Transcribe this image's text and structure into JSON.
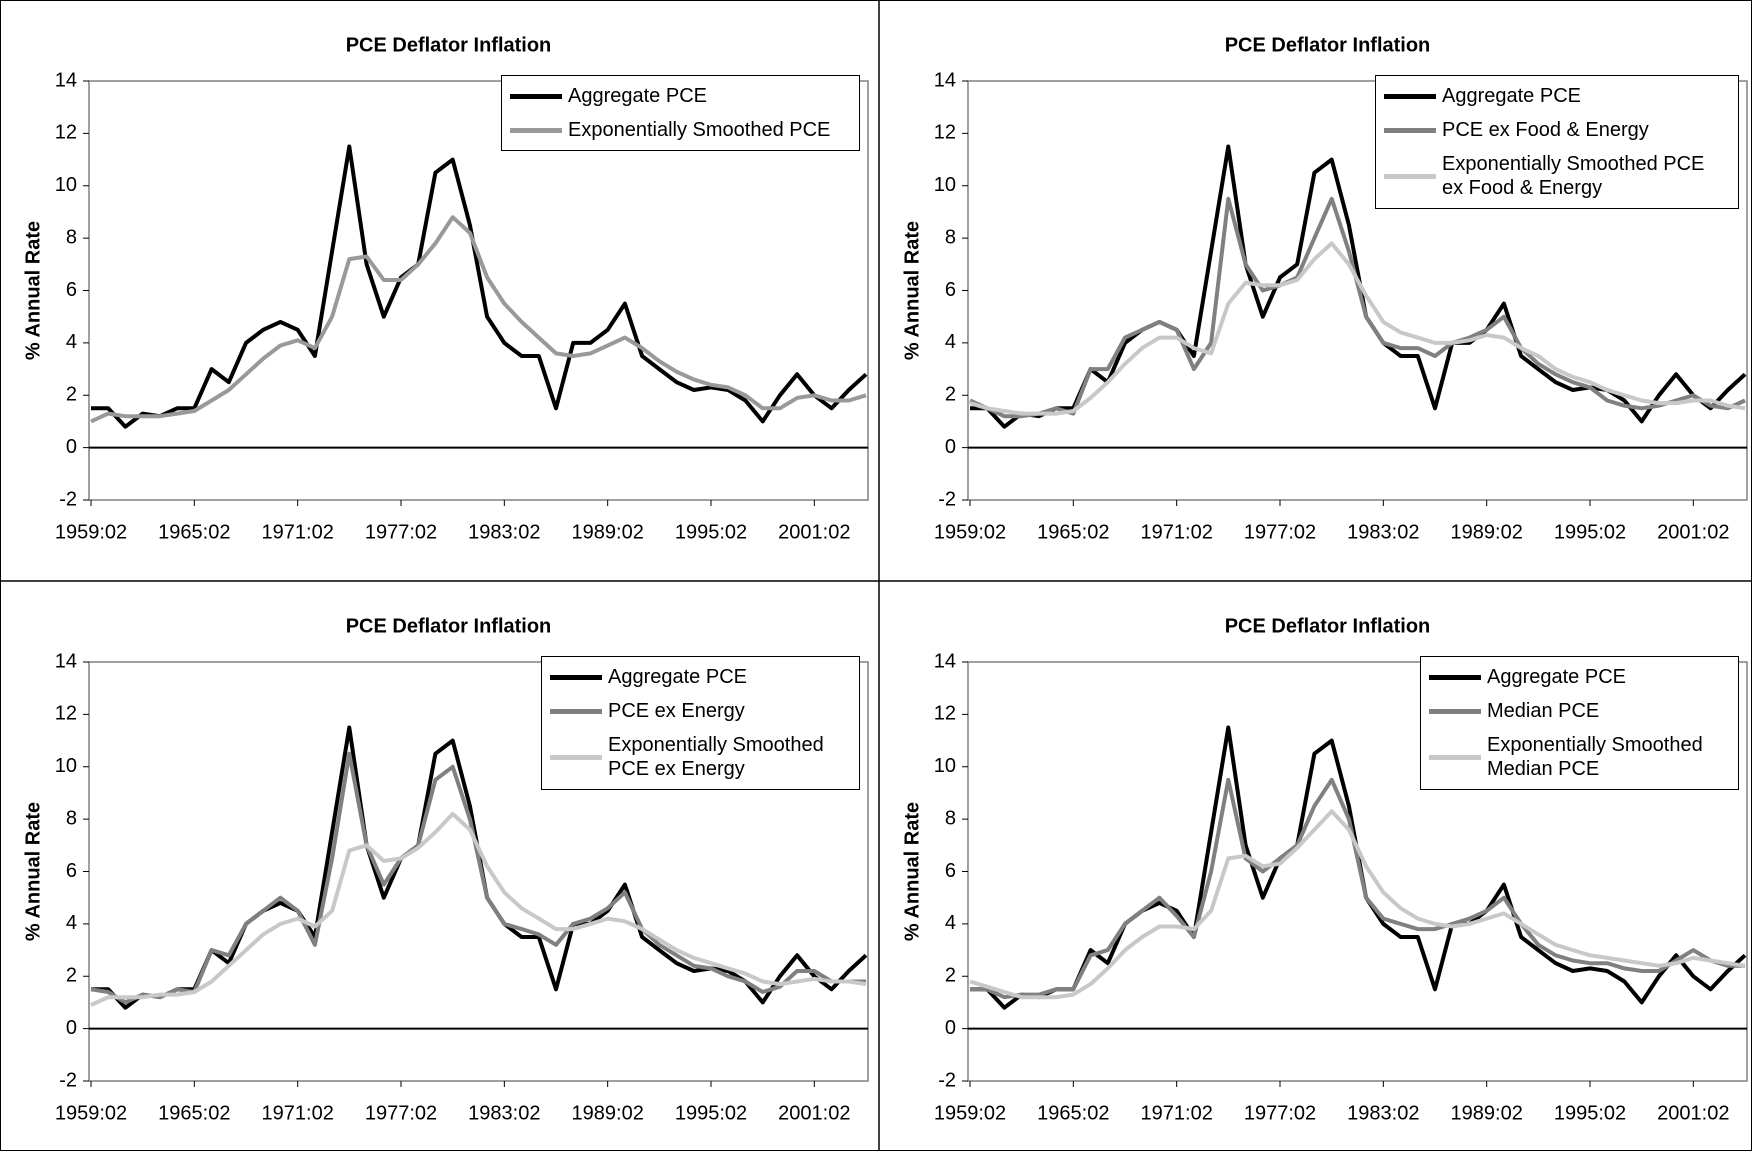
{
  "chart_data": [
    {
      "type": "line",
      "title": "PCE Deflator Inflation",
      "y_label": "% Annual Rate",
      "categories": [
        "1959:02",
        null,
        null,
        null,
        null,
        null,
        "1965:02",
        null,
        null,
        null,
        null,
        null,
        "1971:02",
        null,
        null,
        null,
        null,
        null,
        "1977:02",
        null,
        null,
        null,
        null,
        null,
        "1983:02",
        null,
        null,
        null,
        null,
        null,
        "1989:02",
        null,
        null,
        null,
        null,
        null,
        "1995:02",
        null,
        null,
        null,
        null,
        null,
        "2001:02",
        null,
        null,
        null
      ],
      "ylim": [
        -2,
        14
      ],
      "yticks": [
        -2,
        0,
        2,
        4,
        6,
        8,
        10,
        12,
        14
      ],
      "grid": false,
      "legend": "top-right",
      "series": [
        {
          "name": "Aggregate PCE",
          "color": "#000000",
          "values": [
            1.5,
            1.5,
            0.8,
            1.3,
            1.2,
            1.5,
            1.5,
            3.0,
            2.5,
            4.0,
            4.5,
            4.8,
            4.5,
            3.5,
            7.5,
            11.5,
            7.0,
            5.0,
            6.5,
            7.0,
            10.5,
            11.0,
            8.5,
            5.0,
            4.0,
            3.5,
            3.5,
            1.5,
            4.0,
            4.0,
            4.5,
            5.5,
            3.5,
            3.0,
            2.5,
            2.2,
            2.3,
            2.2,
            1.8,
            1.0,
            2.0,
            2.8,
            2.0,
            1.5,
            2.2,
            2.8
          ]
        },
        {
          "name": "Exponentially Smoothed PCE",
          "color": "#999999",
          "values": [
            1.0,
            1.3,
            1.2,
            1.2,
            1.2,
            1.3,
            1.4,
            1.8,
            2.2,
            2.8,
            3.4,
            3.9,
            4.1,
            3.8,
            5.0,
            7.2,
            7.3,
            6.4,
            6.4,
            7.0,
            7.8,
            8.8,
            8.2,
            6.5,
            5.5,
            4.8,
            4.2,
            3.6,
            3.5,
            3.6,
            3.9,
            4.2,
            3.8,
            3.3,
            2.9,
            2.6,
            2.4,
            2.3,
            2.0,
            1.5,
            1.5,
            1.9,
            2.0,
            1.8,
            1.8,
            2.0
          ]
        }
      ]
    },
    {
      "type": "line",
      "title": "PCE Deflator Inflation",
      "y_label": "% Annual Rate",
      "categories": [
        "1959:02",
        null,
        null,
        null,
        null,
        null,
        "1965:02",
        null,
        null,
        null,
        null,
        null,
        "1971:02",
        null,
        null,
        null,
        null,
        null,
        "1977:02",
        null,
        null,
        null,
        null,
        null,
        "1983:02",
        null,
        null,
        null,
        null,
        null,
        "1989:02",
        null,
        null,
        null,
        null,
        null,
        "1995:02",
        null,
        null,
        null,
        null,
        null,
        "2001:02",
        null,
        null,
        null
      ],
      "ylim": [
        -2,
        14
      ],
      "yticks": [
        -2,
        0,
        2,
        4,
        6,
        8,
        10,
        12,
        14
      ],
      "grid": false,
      "legend": "top-right",
      "series": [
        {
          "name": "Aggregate PCE",
          "color": "#000000",
          "values": [
            1.5,
            1.5,
            0.8,
            1.3,
            1.2,
            1.5,
            1.5,
            3.0,
            2.5,
            4.0,
            4.5,
            4.8,
            4.5,
            3.5,
            7.5,
            11.5,
            7.0,
            5.0,
            6.5,
            7.0,
            10.5,
            11.0,
            8.5,
            5.0,
            4.0,
            3.5,
            3.5,
            1.5,
            4.0,
            4.0,
            4.5,
            5.5,
            3.5,
            3.0,
            2.5,
            2.2,
            2.3,
            2.2,
            1.8,
            1.0,
            2.0,
            2.8,
            2.0,
            1.5,
            2.2,
            2.8
          ]
        },
        {
          "name": "PCE ex Food & Energy",
          "color": "#808080",
          "values": [
            1.8,
            1.5,
            1.2,
            1.2,
            1.3,
            1.5,
            1.3,
            3.0,
            3.0,
            4.2,
            4.5,
            4.8,
            4.5,
            3.0,
            4.0,
            9.5,
            7.0,
            6.0,
            6.2,
            6.5,
            8.0,
            9.5,
            7.5,
            5.0,
            4.0,
            3.8,
            3.8,
            3.5,
            4.0,
            4.2,
            4.5,
            5.0,
            3.8,
            3.2,
            2.8,
            2.5,
            2.3,
            1.8,
            1.6,
            1.5,
            1.6,
            1.8,
            2.0,
            1.6,
            1.5,
            1.8
          ]
        },
        {
          "name": "Exponentially Smoothed PCE ex Food & Energy",
          "color": "#c8c8c8",
          "values": [
            1.7,
            1.5,
            1.4,
            1.3,
            1.3,
            1.3,
            1.4,
            1.9,
            2.5,
            3.2,
            3.8,
            4.2,
            4.2,
            3.8,
            3.6,
            5.5,
            6.3,
            6.2,
            6.2,
            6.4,
            7.2,
            7.8,
            7.0,
            5.8,
            4.8,
            4.4,
            4.2,
            4.0,
            4.0,
            4.1,
            4.3,
            4.2,
            3.8,
            3.5,
            3.0,
            2.7,
            2.5,
            2.2,
            2.0,
            1.8,
            1.7,
            1.7,
            1.8,
            1.8,
            1.6,
            1.5
          ]
        }
      ]
    },
    {
      "type": "line",
      "title": "PCE Deflator Inflation",
      "y_label": "% Annual Rate",
      "categories": [
        "1959:02",
        null,
        null,
        null,
        null,
        null,
        "1965:02",
        null,
        null,
        null,
        null,
        null,
        "1971:02",
        null,
        null,
        null,
        null,
        null,
        "1977:02",
        null,
        null,
        null,
        null,
        null,
        "1983:02",
        null,
        null,
        null,
        null,
        null,
        "1989:02",
        null,
        null,
        null,
        null,
        null,
        "1995:02",
        null,
        null,
        null,
        null,
        null,
        "2001:02",
        null,
        null,
        null
      ],
      "ylim": [
        -2,
        14
      ],
      "yticks": [
        -2,
        0,
        2,
        4,
        6,
        8,
        10,
        12,
        14
      ],
      "grid": false,
      "legend": "top-right",
      "series": [
        {
          "name": "Aggregate PCE",
          "color": "#000000",
          "values": [
            1.5,
            1.5,
            0.8,
            1.3,
            1.2,
            1.5,
            1.5,
            3.0,
            2.5,
            4.0,
            4.5,
            4.8,
            4.5,
            3.5,
            7.5,
            11.5,
            7.0,
            5.0,
            6.5,
            7.0,
            10.5,
            11.0,
            8.5,
            5.0,
            4.0,
            3.5,
            3.5,
            1.5,
            4.0,
            4.0,
            4.5,
            5.5,
            3.5,
            3.0,
            2.5,
            2.2,
            2.3,
            2.2,
            1.8,
            1.0,
            2.0,
            2.8,
            2.0,
            1.5,
            2.2,
            2.8
          ]
        },
        {
          "name": "PCE ex Energy",
          "color": "#808080",
          "values": [
            1.5,
            1.4,
            1.0,
            1.3,
            1.2,
            1.5,
            1.4,
            3.0,
            2.8,
            4.0,
            4.5,
            5.0,
            4.5,
            3.2,
            6.5,
            10.5,
            7.0,
            5.5,
            6.5,
            7.0,
            9.5,
            10.0,
            8.0,
            5.0,
            4.0,
            3.8,
            3.6,
            3.2,
            4.0,
            4.2,
            4.6,
            5.2,
            3.8,
            3.2,
            2.8,
            2.4,
            2.3,
            2.0,
            1.8,
            1.4,
            1.6,
            2.2,
            2.2,
            1.8,
            1.8,
            1.8
          ]
        },
        {
          "name": "Exponentially Smoothed PCE ex Energy",
          "color": "#c8c8c8",
          "values": [
            0.9,
            1.2,
            1.2,
            1.2,
            1.3,
            1.3,
            1.4,
            1.8,
            2.4,
            3.0,
            3.6,
            4.0,
            4.2,
            3.9,
            4.5,
            6.8,
            7.0,
            6.4,
            6.5,
            6.9,
            7.5,
            8.2,
            7.6,
            6.2,
            5.2,
            4.6,
            4.2,
            3.8,
            3.8,
            4.0,
            4.2,
            4.1,
            3.8,
            3.4,
            3.0,
            2.7,
            2.5,
            2.3,
            2.1,
            1.8,
            1.7,
            1.8,
            1.9,
            1.8,
            1.8,
            1.7
          ]
        }
      ]
    },
    {
      "type": "line",
      "title": "PCE Deflator Inflation",
      "y_label": "% Annual Rate",
      "categories": [
        "1959:02",
        null,
        null,
        null,
        null,
        null,
        "1965:02",
        null,
        null,
        null,
        null,
        null,
        "1971:02",
        null,
        null,
        null,
        null,
        null,
        "1977:02",
        null,
        null,
        null,
        null,
        null,
        "1983:02",
        null,
        null,
        null,
        null,
        null,
        "1989:02",
        null,
        null,
        null,
        null,
        null,
        "1995:02",
        null,
        null,
        null,
        null,
        null,
        "2001:02",
        null,
        null,
        null
      ],
      "ylim": [
        -2,
        14
      ],
      "yticks": [
        -2,
        0,
        2,
        4,
        6,
        8,
        10,
        12,
        14
      ],
      "grid": false,
      "legend": "top-right",
      "series": [
        {
          "name": "Aggregate PCE",
          "color": "#000000",
          "values": [
            1.5,
            1.5,
            0.8,
            1.3,
            1.2,
            1.5,
            1.5,
            3.0,
            2.5,
            4.0,
            4.5,
            4.8,
            4.5,
            3.5,
            7.5,
            11.5,
            7.0,
            5.0,
            6.5,
            7.0,
            10.5,
            11.0,
            8.5,
            5.0,
            4.0,
            3.5,
            3.5,
            1.5,
            4.0,
            4.0,
            4.5,
            5.5,
            3.5,
            3.0,
            2.5,
            2.2,
            2.3,
            2.2,
            1.8,
            1.0,
            2.0,
            2.8,
            2.0,
            1.5,
            2.2,
            2.8
          ]
        },
        {
          "name": "Median PCE",
          "color": "#808080",
          "values": [
            1.5,
            1.5,
            1.2,
            1.3,
            1.3,
            1.5,
            1.5,
            2.8,
            3.0,
            4.0,
            4.5,
            5.0,
            4.3,
            3.5,
            6.0,
            9.5,
            6.5,
            6.0,
            6.5,
            7.0,
            8.5,
            9.5,
            8.0,
            5.0,
            4.2,
            4.0,
            3.8,
            3.8,
            4.0,
            4.2,
            4.5,
            5.0,
            4.0,
            3.2,
            2.8,
            2.6,
            2.5,
            2.5,
            2.3,
            2.2,
            2.2,
            2.6,
            3.0,
            2.6,
            2.4,
            2.4
          ]
        },
        {
          "name": "Exponentially Smoothed Median PCE",
          "color": "#c8c8c8",
          "values": [
            1.8,
            1.6,
            1.4,
            1.2,
            1.2,
            1.2,
            1.3,
            1.7,
            2.3,
            3.0,
            3.5,
            3.9,
            3.9,
            3.8,
            4.5,
            6.5,
            6.6,
            6.2,
            6.3,
            6.9,
            7.6,
            8.3,
            7.6,
            6.2,
            5.2,
            4.6,
            4.2,
            4.0,
            3.9,
            4.0,
            4.2,
            4.4,
            4.0,
            3.6,
            3.2,
            3.0,
            2.8,
            2.7,
            2.6,
            2.5,
            2.4,
            2.5,
            2.7,
            2.6,
            2.5,
            2.4
          ]
        }
      ]
    }
  ]
}
